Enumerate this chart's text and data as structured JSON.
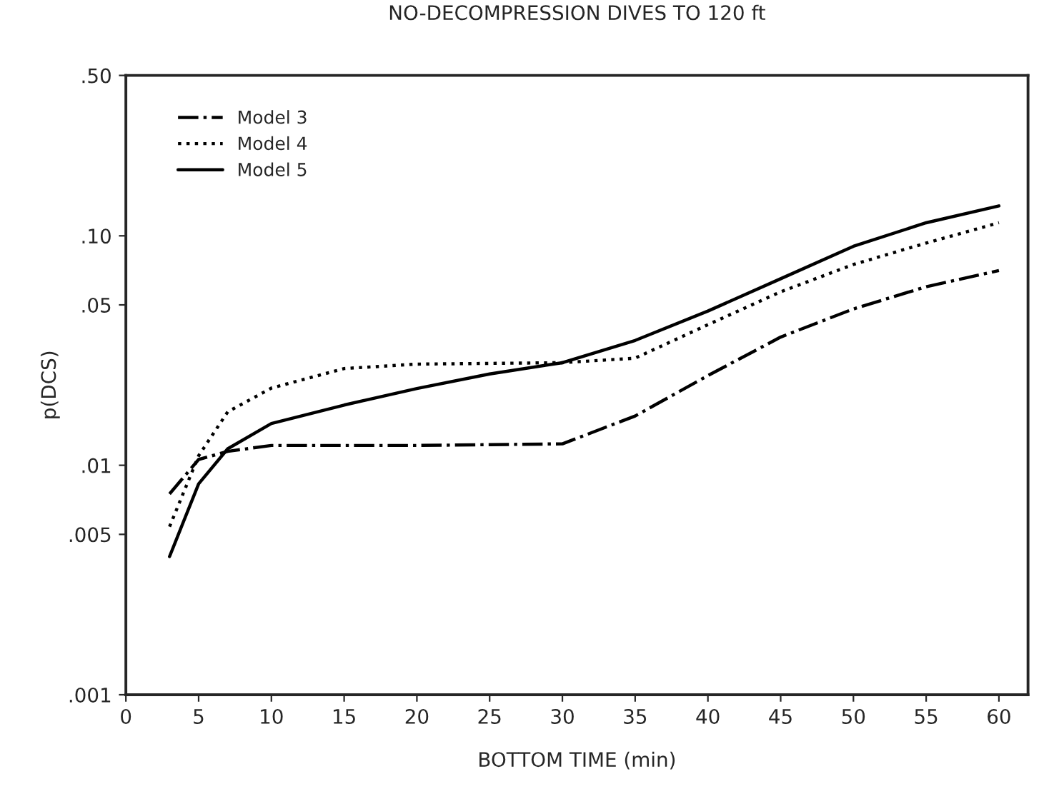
{
  "chart_data": {
    "type": "line",
    "title": "NO-DECOMPRESSION DIVES TO 120 ft",
    "xlabel": "BOTTOM TIME (min)",
    "ylabel": "p(DCS)",
    "log": "y",
    "grid": false,
    "legend": "top left",
    "marker": "none",
    "xlim": [
      0,
      62
    ],
    "xticks": [
      0,
      5,
      10,
      15,
      20,
      25,
      30,
      35,
      40,
      45,
      50,
      55,
      60
    ],
    "ylim": [
      0.001,
      0.5
    ],
    "yticks": [
      {
        "value": 0.5,
        "label": ".50"
      },
      {
        "value": 0.1,
        "label": ".10"
      },
      {
        "value": 0.05,
        "label": ".05"
      },
      {
        "value": 0.01,
        "label": ".01"
      },
      {
        "value": 0.005,
        "label": ".005"
      },
      {
        "value": 0.001,
        "label": ".001"
      }
    ],
    "x": [
      3,
      5,
      7,
      10,
      15,
      20,
      25,
      30,
      35,
      40,
      45,
      50,
      55,
      60
    ],
    "series": [
      {
        "name": "Model 3",
        "color": "#000000",
        "line_style": "dashdot",
        "values": [
          0.0075,
          0.0106,
          0.0115,
          0.0122,
          0.0122,
          0.0122,
          0.0123,
          0.0124,
          0.0164,
          0.0246,
          0.0362,
          0.048,
          0.06,
          0.0706
        ]
      },
      {
        "name": "Model 4",
        "color": "#000000",
        "line_style": "dotted",
        "values": [
          0.0054,
          0.011,
          0.0171,
          0.0217,
          0.0264,
          0.0276,
          0.0278,
          0.028,
          0.0293,
          0.041,
          0.057,
          0.075,
          0.093,
          0.114
        ]
      },
      {
        "name": "Model 5",
        "color": "#000000",
        "line_style": "solid",
        "values": [
          0.004,
          0.0083,
          0.0118,
          0.0152,
          0.0183,
          0.0216,
          0.025,
          0.028,
          0.035,
          0.047,
          0.065,
          0.09,
          0.114,
          0.135
        ]
      }
    ]
  }
}
